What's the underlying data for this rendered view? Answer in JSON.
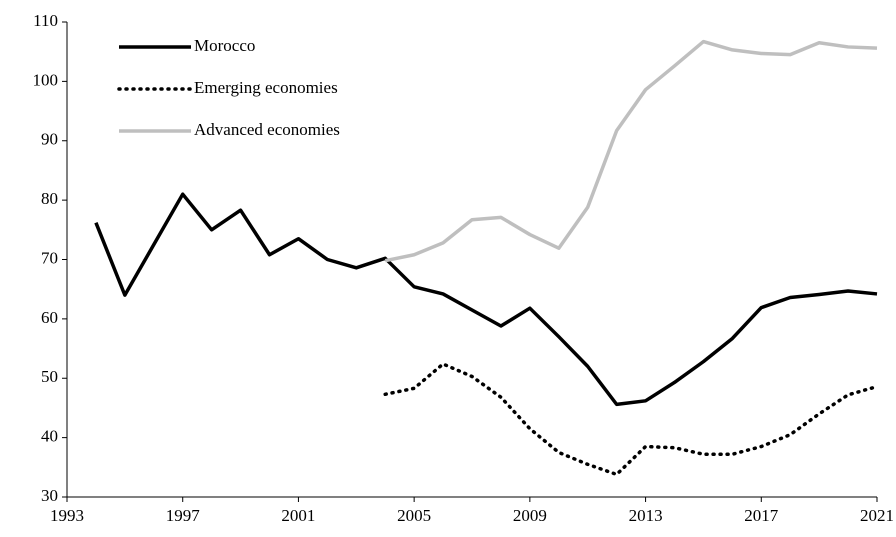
{
  "chart_data": {
    "type": "line",
    "x": [
      1994,
      1995,
      1996,
      1997,
      1998,
      1999,
      2000,
      2001,
      2002,
      2003,
      2004,
      2005,
      2006,
      2007,
      2008,
      2009,
      2010,
      2011,
      2012,
      2013,
      2014,
      2015,
      2016,
      2017,
      2018,
      2019,
      2020,
      2021
    ],
    "series": [
      {
        "name": "Morocco",
        "color": "#000000",
        "line_style": "solid",
        "values": [
          76.2,
          64,
          72.5,
          81,
          75,
          78.3,
          70.8,
          73.5,
          70,
          68.6,
          70.2,
          65.4,
          64.2,
          61.5,
          58.8,
          61.8,
          57,
          52,
          45.6,
          46.2,
          49.3,
          52.8,
          56.7,
          61.9,
          63.6,
          64.1,
          64.7,
          64.2
        ]
      },
      {
        "name": "Emerging economies",
        "color": "#000000",
        "line_style": "dotted",
        "values": [
          null,
          null,
          null,
          null,
          null,
          null,
          null,
          null,
          null,
          null,
          47.3,
          48.3,
          52.4,
          50.3,
          46.8,
          41.5,
          37.5,
          35.5,
          33.8,
          38.5,
          38.3,
          37.2,
          37.2,
          38.5,
          40.5,
          44,
          47.2,
          48.6
        ]
      },
      {
        "name": "Advanced economies",
        "color": "#bfbfbf",
        "line_style": "solid",
        "values": [
          null,
          null,
          null,
          null,
          null,
          null,
          null,
          null,
          null,
          null,
          69.8,
          70.8,
          72.8,
          76.7,
          77.1,
          74.2,
          71.9,
          78.8,
          91.7,
          98.6,
          102.6,
          106.7,
          105.3,
          104.7,
          104.5,
          106.5,
          105.8,
          105.6
        ]
      }
    ],
    "xlim": [
      1993,
      2021
    ],
    "xticks": [
      1993,
      1997,
      2001,
      2005,
      2009,
      2013,
      2017,
      2021
    ],
    "ylim": [
      30,
      110
    ],
    "yticks": [
      30,
      40,
      50,
      60,
      70,
      80,
      90,
      100,
      110
    ],
    "grid": false,
    "legend": "top-left"
  }
}
